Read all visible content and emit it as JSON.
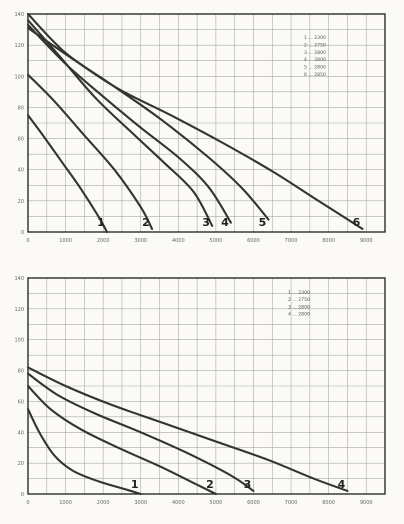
{
  "chart_data": [
    {
      "type": "line",
      "title": "",
      "xlabel": "",
      "ylabel": "",
      "xlim": [
        0,
        9500
      ],
      "ylim": [
        0,
        140
      ],
      "x_ticks": [
        0,
        1000,
        2000,
        3000,
        4000,
        5000,
        6000,
        7000,
        8000,
        9000
      ],
      "y_ticks": [
        0,
        20,
        40,
        60,
        80,
        100,
        120,
        140
      ],
      "grid": true,
      "legend_position": "top-right",
      "legend": [
        "1 ... 2300",
        "2 ... 2750",
        "3 ... 2800",
        "4 ... 2800",
        "5 ... 2800",
        "6 ... 2850"
      ],
      "series": [
        {
          "name": "1",
          "x": [
            0,
            400,
            900,
            1400,
            1900,
            2100
          ],
          "y": [
            75,
            62,
            45,
            28,
            9,
            0
          ]
        },
        {
          "name": "2",
          "x": [
            0,
            700,
            1500,
            2300,
            3000,
            3300
          ],
          "y": [
            101,
            84,
            62,
            40,
            16,
            2
          ]
        },
        {
          "name": "3",
          "x": [
            0,
            800,
            1800,
            2800,
            3600,
            4400,
            4900
          ],
          "y": [
            136,
            114,
            86,
            63,
            45,
            26,
            4
          ]
        },
        {
          "name": "4",
          "x": [
            0,
            1000,
            2000,
            3000,
            4000,
            4800,
            5400
          ],
          "y": [
            133,
            108,
            87,
            67,
            48,
            29,
            6
          ]
        },
        {
          "name": "5",
          "x": [
            0,
            1000,
            2200,
            3500,
            4800,
            5700,
            6400
          ],
          "y": [
            140,
            115,
            95,
            73,
            48,
            28,
            8
          ]
        },
        {
          "name": "6",
          "x": [
            0,
            1200,
            2400,
            3800,
            5200,
            6500,
            7600,
            8900
          ],
          "y": [
            131,
            111,
            92,
            75,
            57,
            39,
            22,
            2
          ]
        }
      ],
      "curve_labels": [
        "1",
        "2",
        "3",
        "4",
        "5",
        "6"
      ]
    },
    {
      "type": "line",
      "title": "",
      "xlabel": "",
      "ylabel": "",
      "xlim": [
        0,
        9500
      ],
      "ylim": [
        0,
        140
      ],
      "x_ticks": [
        0,
        1000,
        2000,
        3000,
        4000,
        5000,
        6000,
        7000,
        8000,
        9000
      ],
      "y_ticks": [
        0,
        20,
        40,
        60,
        80,
        100,
        120,
        140
      ],
      "grid": true,
      "legend_position": "top-right",
      "legend": [
        "1 ... 2300",
        "2 ... 2750",
        "3 ... 2800",
        "4 ... 2800"
      ],
      "series": [
        {
          "name": "1",
          "x": [
            0,
            300,
            700,
            1200,
            1900,
            2600,
            3000
          ],
          "y": [
            55,
            40,
            25,
            15,
            8,
            3,
            0
          ]
        },
        {
          "name": "2",
          "x": [
            0,
            600,
            1400,
            2400,
            3500,
            4500,
            5000
          ],
          "y": [
            70,
            55,
            42,
            30,
            18,
            6,
            0
          ]
        },
        {
          "name": "3",
          "x": [
            0,
            800,
            1800,
            3000,
            4200,
            5400,
            6000
          ],
          "y": [
            78,
            64,
            52,
            40,
            27,
            12,
            2
          ]
        },
        {
          "name": "4",
          "x": [
            0,
            1000,
            2200,
            3600,
            5000,
            6400,
            7600,
            8500
          ],
          "y": [
            82,
            70,
            58,
            46,
            34,
            22,
            10,
            2
          ]
        }
      ],
      "curve_labels": [
        "1",
        "2",
        "3",
        "4"
      ]
    }
  ]
}
